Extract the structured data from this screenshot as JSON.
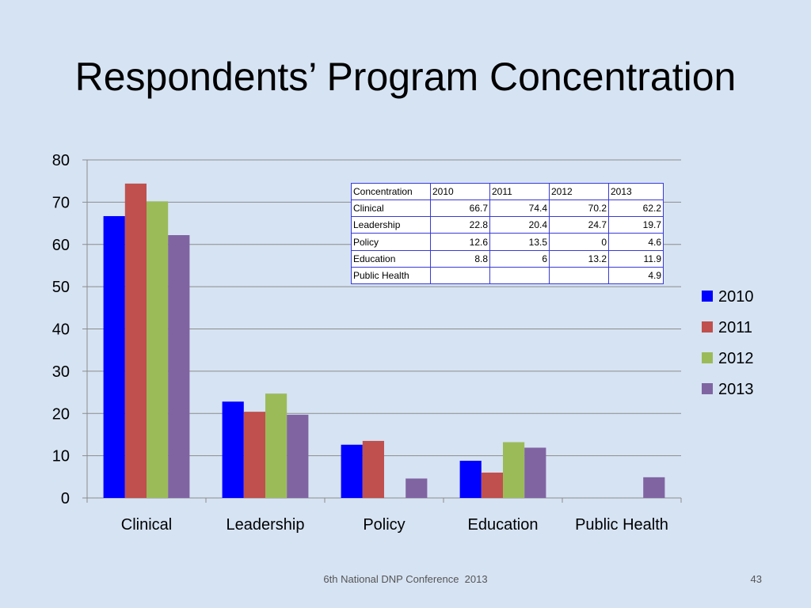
{
  "slide": {
    "title": "Respondents’ Program Concentration",
    "footer": "6th National DNP Conference  2013",
    "page_number": "43"
  },
  "chart_data": {
    "type": "bar",
    "categories": [
      "Clinical",
      "Leadership",
      "Policy",
      "Education",
      "Public Health"
    ],
    "series": [
      {
        "name": "2010",
        "color": "#0000ff",
        "values": [
          66.7,
          22.8,
          12.6,
          8.8,
          null
        ]
      },
      {
        "name": "2011",
        "color": "#c0504d",
        "values": [
          74.4,
          20.4,
          13.5,
          6,
          null
        ]
      },
      {
        "name": "2012",
        "color": "#9bbb59",
        "values": [
          70.2,
          24.7,
          0,
          13.2,
          null
        ]
      },
      {
        "name": "2013",
        "color": "#8064a2",
        "values": [
          62.2,
          19.7,
          4.6,
          11.9,
          4.9
        ]
      }
    ],
    "ylim": [
      0,
      80
    ],
    "yticks": [
      "0",
      "10",
      "20",
      "30",
      "40",
      "50",
      "60",
      "70",
      "80"
    ],
    "grid": true,
    "legend_position": "right"
  },
  "data_table": {
    "header": [
      "Concentration",
      "2010",
      "2011",
      "2012",
      "2013"
    ],
    "rows": [
      [
        "Clinical",
        "66.7",
        "74.4",
        "70.2",
        "62.2"
      ],
      [
        "Leadership",
        "22.8",
        "20.4",
        "24.7",
        "19.7"
      ],
      [
        "Policy",
        "12.6",
        "13.5",
        "0",
        "4.6"
      ],
      [
        "Education",
        "8.8",
        "6",
        "13.2",
        "11.9"
      ],
      [
        "Public Health",
        "",
        "",
        "",
        "4.9"
      ]
    ]
  }
}
